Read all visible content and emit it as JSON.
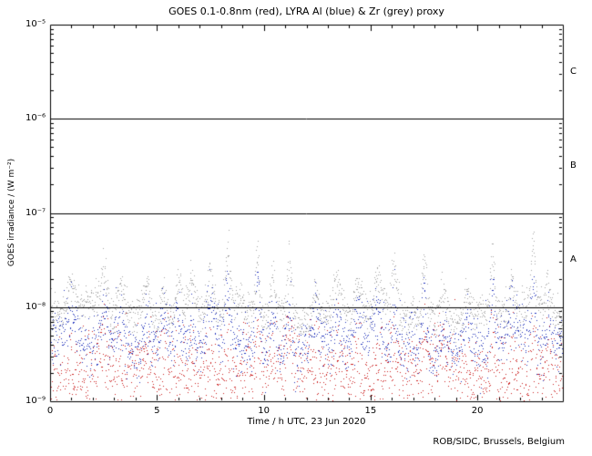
{
  "credit": "ROB/SIDC, Brussels, Belgium",
  "colors": {
    "background": "#ffffff",
    "axis": "#000000",
    "goes_red": "#cc2222",
    "lyra_al_blue": "#2233bb",
    "lyra_zr_grey": "#a6a6a6"
  },
  "chart_data": {
    "type": "scatter",
    "title": "GOES 0.1-0.8nm (red), LYRA Al (blue) & Zr (grey) proxy",
    "xlabel": "Time / h UTC, 23 Jun 2020",
    "ylabel": "GOES irradiance / (W m⁻²)",
    "legend_position": "in-title",
    "grid": false,
    "x_range_hours": [
      0,
      24
    ],
    "y_log_range": [
      -9,
      -5
    ],
    "x_major_ticks": [
      0,
      5,
      10,
      15,
      20
    ],
    "x_minor_step": 1,
    "y_tick_exponents": [
      -5,
      -6,
      -7,
      -8,
      -9
    ],
    "y_tick_labels": [
      "10⁻⁵",
      "10⁻⁶",
      "10⁻⁷",
      "10⁻⁸",
      "10⁻⁹"
    ],
    "hlines_log": [
      -6,
      -7,
      -8
    ],
    "flare_class_labels": [
      {
        "label": "C",
        "band_log": [
          -6,
          -5
        ]
      },
      {
        "label": "B",
        "band_log": [
          -7,
          -6
        ]
      },
      {
        "label": "A",
        "band_log": [
          -8,
          -7
        ]
      }
    ],
    "peaks": [
      {
        "x": 1.0,
        "a": 0.3,
        "w": 0.14
      },
      {
        "x": 2.5,
        "a": 0.45,
        "w": 0.18
      },
      {
        "x": 3.3,
        "a": 0.35,
        "w": 0.14
      },
      {
        "x": 4.5,
        "a": 0.4,
        "w": 0.16
      },
      {
        "x": 5.3,
        "a": 0.35,
        "w": 0.13
      },
      {
        "x": 6.0,
        "a": 0.33,
        "w": 0.13
      },
      {
        "x": 6.6,
        "a": 0.35,
        "w": 0.11
      },
      {
        "x": 7.5,
        "a": 0.4,
        "w": 0.14
      },
      {
        "x": 8.3,
        "a": 0.55,
        "w": 0.11
      },
      {
        "x": 9.7,
        "a": 0.65,
        "w": 0.09
      },
      {
        "x": 10.4,
        "a": 0.4,
        "w": 0.11
      },
      {
        "x": 11.2,
        "a": 0.6,
        "w": 0.1
      },
      {
        "x": 12.4,
        "a": 0.33,
        "w": 0.14
      },
      {
        "x": 13.4,
        "a": 0.35,
        "w": 0.14
      },
      {
        "x": 14.4,
        "a": 0.38,
        "w": 0.14
      },
      {
        "x": 15.3,
        "a": 0.35,
        "w": 0.12
      },
      {
        "x": 16.1,
        "a": 0.45,
        "w": 0.11
      },
      {
        "x": 17.5,
        "a": 0.62,
        "w": 0.1
      },
      {
        "x": 18.4,
        "a": 0.3,
        "w": 0.14
      },
      {
        "x": 19.5,
        "a": 0.33,
        "w": 0.14
      },
      {
        "x": 20.7,
        "a": 0.63,
        "w": 0.09
      },
      {
        "x": 21.6,
        "a": 0.35,
        "w": 0.11
      },
      {
        "x": 22.6,
        "a": 0.65,
        "w": 0.1
      },
      {
        "x": 23.3,
        "a": 0.35,
        "w": 0.11
      }
    ],
    "series": [
      {
        "name": "GOES 0.1-0.8nm",
        "color": "#cc2222",
        "base_log": -8.7,
        "noise_log": 0.22,
        "wiggle": 0.06,
        "peak_scale": 0.5,
        "points": 1700,
        "seed": 42
      },
      {
        "name": "LYRA Al",
        "color": "#2233bb",
        "base_log": -8.4,
        "noise_log": 0.15,
        "wiggle": 0.07,
        "peak_scale": 0.9,
        "points": 1700,
        "seed": 7
      },
      {
        "name": "LYRA Zr",
        "color": "#a6a6a6",
        "base_log": -8.08,
        "noise_log": 0.1,
        "wiggle": 0.07,
        "peak_scale": 1.0,
        "points": 1700,
        "seed": 13
      }
    ]
  }
}
